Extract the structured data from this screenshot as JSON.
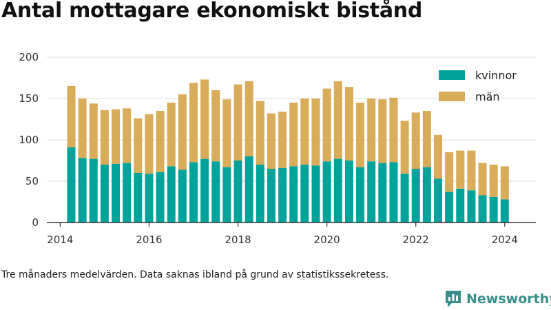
{
  "title": "Antal mottagare ekonomiskt bistånd",
  "footnote": "Tre månaders medelvärden. Data saknas ibland på grund av statistikssekretess.",
  "brand": {
    "name": "Newsworthy",
    "icon": "newsworthy-logo-icon"
  },
  "colors": {
    "kvinnor": "#00a39a",
    "man": "#d8ac58",
    "grid": "#dddddd",
    "axis": "#333333"
  },
  "chart_data": {
    "type": "bar",
    "stacked": true,
    "x_ticks": [
      "2014",
      "2016",
      "2018",
      "2020",
      "2022",
      "2024"
    ],
    "y_ticks": [
      "0",
      "50",
      "100",
      "150",
      "200"
    ],
    "ylim": [
      0,
      200
    ],
    "xlim": [
      2013.7,
      2024.7
    ],
    "grid": "horizontal",
    "legend": "top-right",
    "x": [
      2014.25,
      2014.5,
      2014.75,
      2015.0,
      2015.25,
      2015.5,
      2015.75,
      2016.0,
      2016.25,
      2016.5,
      2016.75,
      2017.0,
      2017.25,
      2017.5,
      2017.75,
      2018.0,
      2018.25,
      2018.5,
      2018.75,
      2019.0,
      2019.25,
      2019.5,
      2019.75,
      2020.0,
      2020.25,
      2020.5,
      2020.75,
      2021.0,
      2021.25,
      2021.5,
      2021.75,
      2022.0,
      2022.25,
      2022.5,
      2022.75,
      2023.0,
      2023.25,
      2023.5,
      2023.75,
      2024.0
    ],
    "series": [
      {
        "name": "kvinnor",
        "values": [
          91,
          78,
          77,
          70,
          71,
          72,
          60,
          59,
          61,
          68,
          64,
          73,
          77,
          74,
          67,
          75,
          80,
          70,
          65,
          66,
          68,
          70,
          69,
          74,
          77,
          75,
          67,
          74,
          72,
          73,
          59,
          65,
          67,
          53,
          37,
          41,
          39,
          33,
          31,
          28
        ]
      },
      {
        "name": "män",
        "values": [
          74,
          72,
          67,
          66,
          66,
          66,
          66,
          72,
          74,
          77,
          91,
          96,
          96,
          86,
          82,
          92,
          91,
          77,
          67,
          68,
          77,
          80,
          81,
          88,
          94,
          89,
          78,
          76,
          77,
          78,
          64,
          68,
          68,
          53,
          48,
          46,
          48,
          39,
          39,
          40
        ]
      }
    ]
  }
}
